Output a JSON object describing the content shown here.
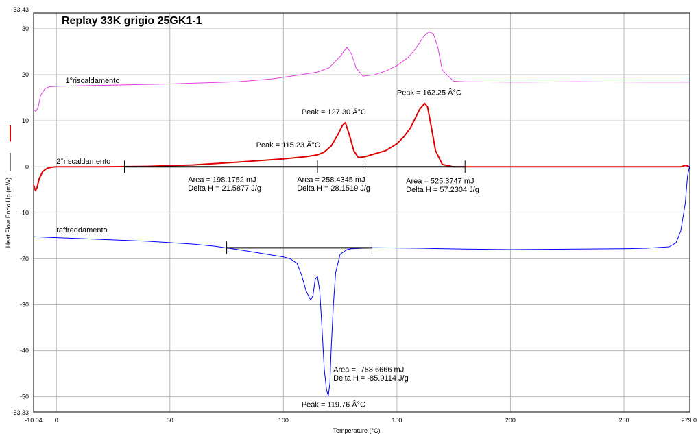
{
  "chart_data": {
    "type": "line",
    "title": "Replay 33K grigio 25GK1-1",
    "xlabel": "Temperature (°C)",
    "ylabel": "Heat Flow Endo Up (mW)",
    "xlim": [
      -10.04,
      279.0
    ],
    "ylim": [
      -53.33,
      33.43
    ],
    "x_ticks": [
      0,
      50,
      100,
      150,
      200,
      250
    ],
    "x_tick_labels": [
      "0",
      "50",
      "100",
      "150",
      "200",
      "250"
    ],
    "x_edge_labels": [
      "-10.04",
      "279.0"
    ],
    "y_ticks": [
      30,
      20,
      10,
      0,
      -10,
      -20,
      -30,
      -40,
      -50
    ],
    "y_tick_labels": [
      "30",
      "20",
      "10",
      "0",
      "-10",
      "-20",
      "-30",
      "-40",
      "-50"
    ],
    "y_edge_labels": [
      "33.43",
      "-53.33"
    ],
    "grid": true,
    "series": [
      {
        "name": "1°riscaldamento",
        "color": "#e040e0",
        "x": [
          -10.0,
          -9.0,
          -8.0,
          -7.0,
          -5.0,
          -3.0,
          0,
          20,
          50,
          80,
          95,
          105,
          115,
          120,
          125,
          128,
          130,
          132,
          135,
          140,
          145,
          150,
          155,
          158,
          160,
          162,
          164,
          166,
          168,
          170,
          175,
          180,
          200,
          230,
          260,
          279
        ],
        "values": [
          12.5,
          12.0,
          13.0,
          15.5,
          17.0,
          17.4,
          17.5,
          17.7,
          18.0,
          18.5,
          19.1,
          19.8,
          20.6,
          21.5,
          24.0,
          26.0,
          24.5,
          21.5,
          19.7,
          20.0,
          20.8,
          22.0,
          23.8,
          25.5,
          27.0,
          28.5,
          29.3,
          29.0,
          26.0,
          21.0,
          18.6,
          18.5,
          18.4,
          18.5,
          18.4,
          18.4
        ]
      },
      {
        "name": "2°riscaldamento",
        "color": "#dd0000",
        "x": [
          -10.0,
          -9.2,
          -8.5,
          -7.5,
          -6.0,
          -4.0,
          -2.0,
          0,
          20,
          40,
          60,
          80,
          100,
          110,
          115,
          118,
          121,
          124,
          126,
          127.3,
          129,
          131,
          133,
          136,
          140,
          145,
          150,
          153,
          156,
          158,
          160,
          162.25,
          163.5,
          165,
          167,
          170,
          175,
          200,
          240,
          275,
          277,
          278,
          279
        ],
        "values": [
          -4.0,
          -5.2,
          -4.5,
          -2.5,
          -1.0,
          -0.3,
          -0.1,
          0.0,
          0.0,
          0.1,
          0.4,
          1.0,
          1.7,
          2.2,
          2.6,
          3.2,
          4.5,
          7.0,
          9.0,
          9.6,
          7.0,
          3.5,
          2.0,
          2.2,
          2.8,
          3.5,
          5.0,
          6.5,
          8.5,
          10.5,
          12.5,
          13.8,
          13.0,
          9.0,
          3.5,
          0.5,
          0.0,
          0.0,
          0.0,
          0.0,
          0.3,
          0.2,
          0.0
        ]
      },
      {
        "name": "raffreddamento",
        "color": "#0000ff",
        "x": [
          -10.0,
          0,
          20,
          40,
          60,
          70,
          80,
          90,
          100,
          103,
          106,
          108,
          110,
          112,
          113,
          114,
          115,
          116,
          117,
          118,
          119,
          119.76,
          120.5,
          121,
          122,
          123,
          125,
          128,
          130,
          140,
          160,
          180,
          200,
          230,
          250,
          260,
          270,
          273,
          275,
          277,
          278,
          279
        ],
        "values": [
          -15.2,
          -15.4,
          -15.8,
          -16.2,
          -16.8,
          -17.3,
          -18.0,
          -18.8,
          -19.6,
          -20.0,
          -21.0,
          -23.5,
          -27.0,
          -29.0,
          -28.0,
          -24.5,
          -23.8,
          -27.0,
          -35.0,
          -44.0,
          -48.5,
          -49.8,
          -47.0,
          -40.0,
          -30.0,
          -23.0,
          -19.0,
          -18.0,
          -17.8,
          -17.6,
          -17.7,
          -17.9,
          -18.0,
          -17.9,
          -17.8,
          -17.7,
          -17.4,
          -16.5,
          -14.0,
          -8.0,
          -2.0,
          0.3
        ]
      }
    ],
    "series_labels": [
      {
        "text": "1°riscaldamento",
        "x": 4,
        "y": 18.2
      },
      {
        "text": "2°riscaldamento",
        "x": 0,
        "y": 0.6
      },
      {
        "text": "raffreddamento",
        "x": 0,
        "y": -14.3
      }
    ],
    "baselines": [
      {
        "x1": 30,
        "y1": 0.0,
        "x2": 180,
        "y2": 0.0,
        "ticks": [
          30,
          115,
          136,
          180
        ],
        "color": "#000000"
      },
      {
        "x1": 75,
        "y1": -17.6,
        "x2": 139,
        "y2": -17.6,
        "ticks": [
          75,
          139
        ],
        "color": "#000000"
      }
    ],
    "annotations": [
      {
        "text": "Peak = 127.30 Â°C",
        "x": 108,
        "y": 11.4
      },
      {
        "text": "Peak = 115.23 Â°C",
        "x": 88,
        "y": 4.2
      },
      {
        "text": "Peak = 162.25 Â°C",
        "x": 150,
        "y": 15.6
      },
      {
        "text": "Area = 198.1752 mJ",
        "x": 58,
        "y": -3.3
      },
      {
        "text": "Delta H = 21.5877 J/g",
        "x": 58,
        "y": -5.2
      },
      {
        "text": "Area = 258.4345 mJ",
        "x": 106,
        "y": -3.3
      },
      {
        "text": "Delta H = 28.1519 J/g",
        "x": 106,
        "y": -5.2
      },
      {
        "text": "Area = 525.3747 mJ",
        "x": 154,
        "y": -3.6
      },
      {
        "text": "Delta H = 57.2304 J/g",
        "x": 154,
        "y": -5.5
      },
      {
        "text": "Area = -788.6666 mJ",
        "x": 122,
        "y": -44.6
      },
      {
        "text": "Delta H = -85.9114 J/g",
        "x": 122,
        "y": -46.5
      },
      {
        "text": "Peak = 119.76 Â°C",
        "x": 108,
        "y": -52.2
      }
    ],
    "legend_marker": {
      "color": "#dd0000"
    }
  }
}
